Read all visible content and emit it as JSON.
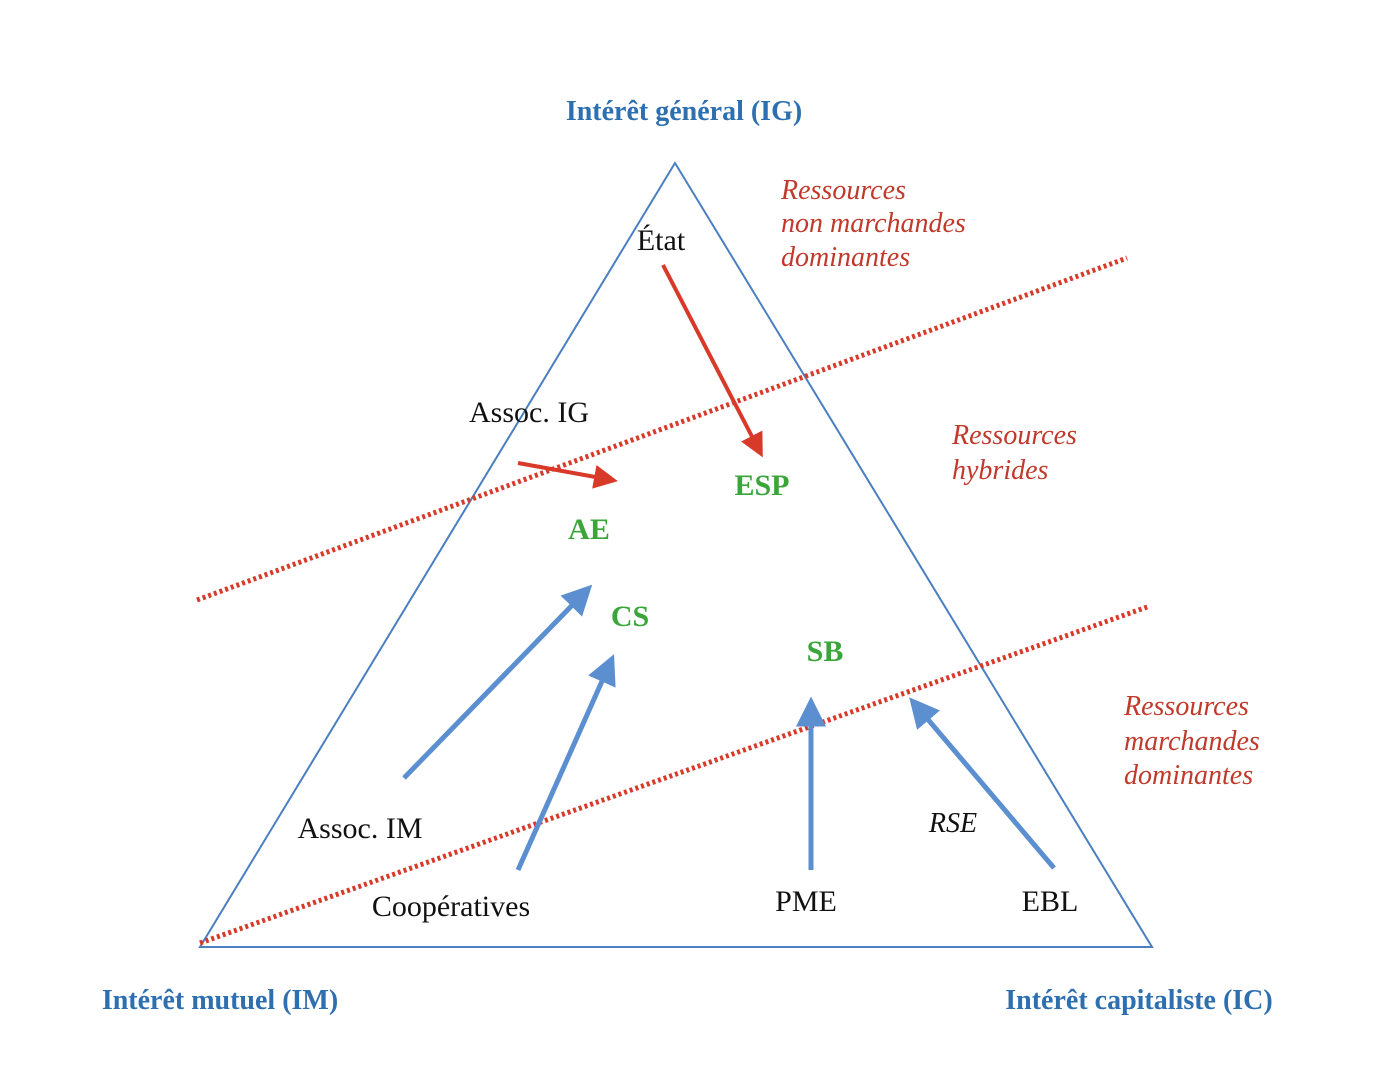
{
  "colors": {
    "vertex_label": "#2e6fb0",
    "triangle": "#4a7fc0",
    "zone_text": "#c0392b",
    "divider": "#d83a2a",
    "red_arrow": "#d83a2a",
    "blue_arrow": "#5b8fd0",
    "hybrid_text": "#3aa63a",
    "actor_text": "#111111"
  },
  "vertices": {
    "top": "Intérêt général (IG)",
    "bottom_left": "Intérêt mutuel (IM)",
    "bottom_right": "Intérêt capitaliste (IC)"
  },
  "zones": {
    "non_market": [
      "Ressources",
      "non marchandes",
      "dominantes"
    ],
    "hybrid": [
      "Ressources",
      "hybrides"
    ],
    "market": [
      "Ressources",
      "marchandes",
      "dominantes"
    ]
  },
  "actors": {
    "etat": "État",
    "assoc_ig": "Assoc. IG",
    "assoc_im": "Assoc. IM",
    "cooperatives": "Coopératives",
    "pme": "PME",
    "ebl": "EBL",
    "rse": "RSE"
  },
  "hybrids": {
    "esp": "ESP",
    "ae": "AE",
    "cs": "CS",
    "sb": "SB"
  }
}
